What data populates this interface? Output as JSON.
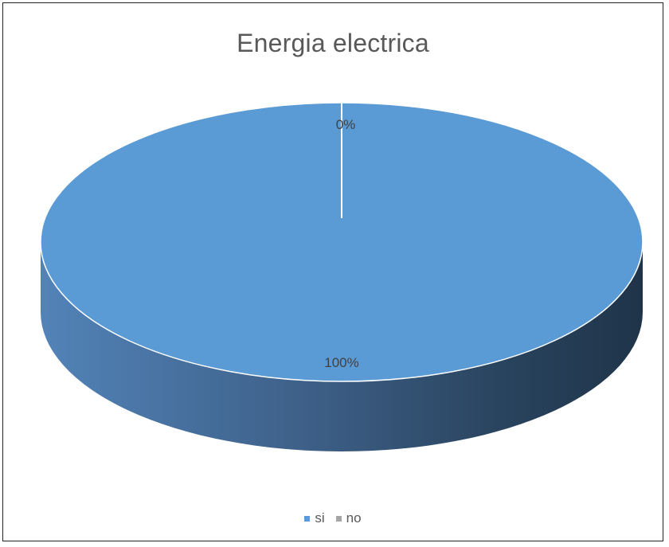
{
  "chart_data": {
    "type": "pie",
    "title": "Energia electrica",
    "categories": [
      "si",
      "no"
    ],
    "values": [
      100,
      0
    ],
    "data_labels": [
      "100%",
      "0%"
    ],
    "colors": [
      "#5B9BD5",
      "#A5A5A5"
    ],
    "legend_position": "bottom",
    "style": "3d"
  }
}
